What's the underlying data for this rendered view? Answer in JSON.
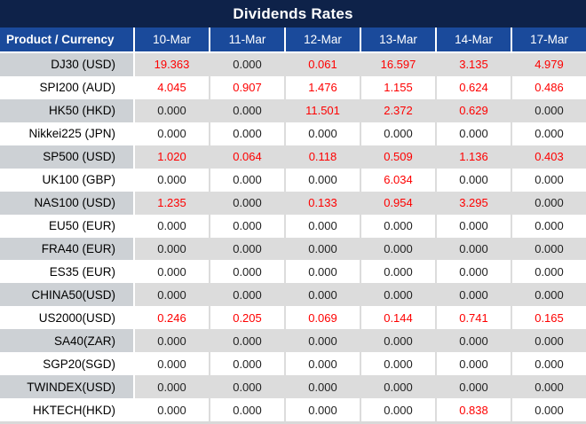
{
  "title": "Dividends Rates",
  "columns": [
    "Product / Currency",
    "10-Mar",
    "11-Mar",
    "12-Mar",
    "13-Mar",
    "14-Mar",
    "17-Mar"
  ],
  "rows": [
    {
      "product": "DJ30 (USD)",
      "values": [
        "19.363",
        "0.000",
        "0.061",
        "16.597",
        "3.135",
        "4.979"
      ]
    },
    {
      "product": "SPI200 (AUD)",
      "values": [
        "4.045",
        "0.907",
        "1.476",
        "1.155",
        "0.624",
        "0.486"
      ]
    },
    {
      "product": "HK50 (HKD)",
      "values": [
        "0.000",
        "0.000",
        "11.501",
        "2.372",
        "0.629",
        "0.000"
      ]
    },
    {
      "product": "Nikkei225 (JPN)",
      "values": [
        "0.000",
        "0.000",
        "0.000",
        "0.000",
        "0.000",
        "0.000"
      ]
    },
    {
      "product": "SP500 (USD)",
      "values": [
        "1.020",
        "0.064",
        "0.118",
        "0.509",
        "1.136",
        "0.403"
      ]
    },
    {
      "product": "UK100 (GBP)",
      "values": [
        "0.000",
        "0.000",
        "0.000",
        "6.034",
        "0.000",
        "0.000"
      ]
    },
    {
      "product": "NAS100 (USD)",
      "values": [
        "1.235",
        "0.000",
        "0.133",
        "0.954",
        "3.295",
        "0.000"
      ]
    },
    {
      "product": "EU50 (EUR)",
      "values": [
        "0.000",
        "0.000",
        "0.000",
        "0.000",
        "0.000",
        "0.000"
      ]
    },
    {
      "product": "FRA40 (EUR)",
      "values": [
        "0.000",
        "0.000",
        "0.000",
        "0.000",
        "0.000",
        "0.000"
      ]
    },
    {
      "product": "ES35 (EUR)",
      "values": [
        "0.000",
        "0.000",
        "0.000",
        "0.000",
        "0.000",
        "0.000"
      ]
    },
    {
      "product": "CHINA50(USD)",
      "values": [
        "0.000",
        "0.000",
        "0.000",
        "0.000",
        "0.000",
        "0.000"
      ]
    },
    {
      "product": "US2000(USD)",
      "values": [
        "0.246",
        "0.205",
        "0.069",
        "0.144",
        "0.741",
        "0.165"
      ]
    },
    {
      "product": "SA40(ZAR)",
      "values": [
        "0.000",
        "0.000",
        "0.000",
        "0.000",
        "0.000",
        "0.000"
      ]
    },
    {
      "product": "SGP20(SGD)",
      "values": [
        "0.000",
        "0.000",
        "0.000",
        "0.000",
        "0.000",
        "0.000"
      ]
    },
    {
      "product": "TWINDEX(USD)",
      "values": [
        "0.000",
        "0.000",
        "0.000",
        "0.000",
        "0.000",
        "0.000"
      ]
    },
    {
      "product": "HKTECH(HKD)",
      "values": [
        "0.000",
        "0.000",
        "0.000",
        "0.000",
        "0.838",
        "0.000"
      ]
    }
  ],
  "colors": {
    "title_bg": "#0E2249",
    "header_bg": "#1A4A9B",
    "nonzero_value_red": "#FE0000",
    "stripe_row_product_bg": "#CDD1D5",
    "stripe_row_data_bg": "#DCDCDC"
  }
}
